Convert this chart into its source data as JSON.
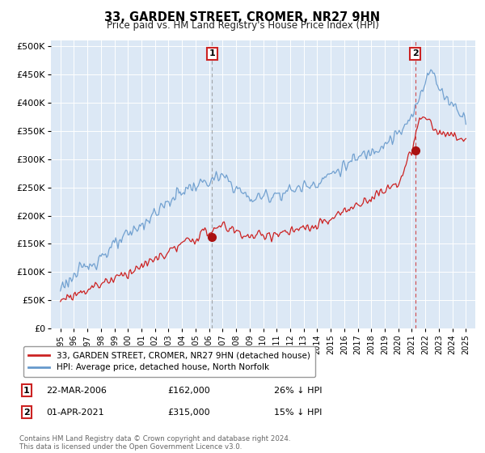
{
  "title": "33, GARDEN STREET, CROMER, NR27 9HN",
  "subtitle": "Price paid vs. HM Land Registry's House Price Index (HPI)",
  "ytick_labels": [
    "£0",
    "£50K",
    "£100K",
    "£150K",
    "£200K",
    "£250K",
    "£300K",
    "£350K",
    "£400K",
    "£450K",
    "£500K"
  ],
  "yticks": [
    0,
    50000,
    100000,
    150000,
    200000,
    250000,
    300000,
    350000,
    400000,
    450000,
    500000
  ],
  "plot_bg_color": "#dce8f5",
  "line_red_color": "#cc2222",
  "line_blue_color": "#6699cc",
  "vline1_color": "#888888",
  "vline2_color": "#cc2222",
  "marker_color": "#aa1111",
  "sale1_year": 2006.22,
  "sale1_price": 162000,
  "sale2_year": 2021.25,
  "sale2_price": 315000,
  "legend_line1": "33, GARDEN STREET, CROMER, NR27 9HN (detached house)",
  "legend_line2": "HPI: Average price, detached house, North Norfolk",
  "footer": "Contains HM Land Registry data © Crown copyright and database right 2024.\nThis data is licensed under the Open Government Licence v3.0."
}
